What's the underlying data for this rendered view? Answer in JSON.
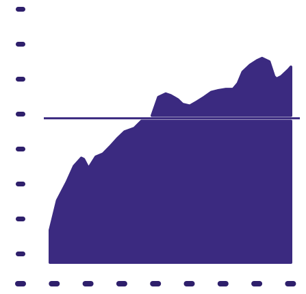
{
  "colors": {
    "fill": "#3b2a80",
    "tick": "#2e1f6b",
    "background": "#ffffff"
  },
  "chart_data": {
    "type": "area",
    "title": "",
    "xlabel": "",
    "ylabel": "",
    "grid": false,
    "legend": "none",
    "xlim": [
      0,
      1
    ],
    "ylim": [
      0,
      1
    ],
    "x_tick_count": 9,
    "y_tick_count": 8,
    "reference_line": {
      "y": 0.628
    },
    "series": [
      {
        "values": [
          [
            0.0,
            0.141
          ],
          [
            0.03,
            0.27
          ],
          [
            0.07,
            0.35
          ],
          [
            0.1,
            0.42
          ],
          [
            0.13,
            0.455
          ],
          [
            0.14,
            0.45
          ],
          [
            0.16,
            0.41
          ],
          [
            0.19,
            0.46
          ],
          [
            0.22,
            0.473
          ],
          [
            0.25,
            0.505
          ],
          [
            0.28,
            0.54
          ],
          [
            0.31,
            0.57
          ],
          [
            0.35,
            0.585
          ],
          [
            0.38,
            0.63
          ],
          [
            0.42,
            0.63
          ],
          [
            0.45,
            0.72
          ],
          [
            0.48,
            0.735
          ],
          [
            0.5,
            0.728
          ],
          [
            0.53,
            0.71
          ],
          [
            0.55,
            0.69
          ],
          [
            0.58,
            0.682
          ],
          [
            0.61,
            0.7
          ],
          [
            0.64,
            0.72
          ],
          [
            0.67,
            0.742
          ],
          [
            0.7,
            0.75
          ],
          [
            0.73,
            0.755
          ],
          [
            0.76,
            0.755
          ],
          [
            0.78,
            0.78
          ],
          [
            0.8,
            0.83
          ],
          [
            0.83,
            0.86
          ],
          [
            0.86,
            0.88
          ],
          [
            0.88,
            0.89
          ],
          [
            0.91,
            0.875
          ],
          [
            0.93,
            0.81
          ],
          [
            0.94,
            0.8
          ],
          [
            0.96,
            0.81
          ],
          [
            0.99,
            0.84
          ],
          [
            1.0,
            0.852
          ]
        ]
      }
    ]
  }
}
